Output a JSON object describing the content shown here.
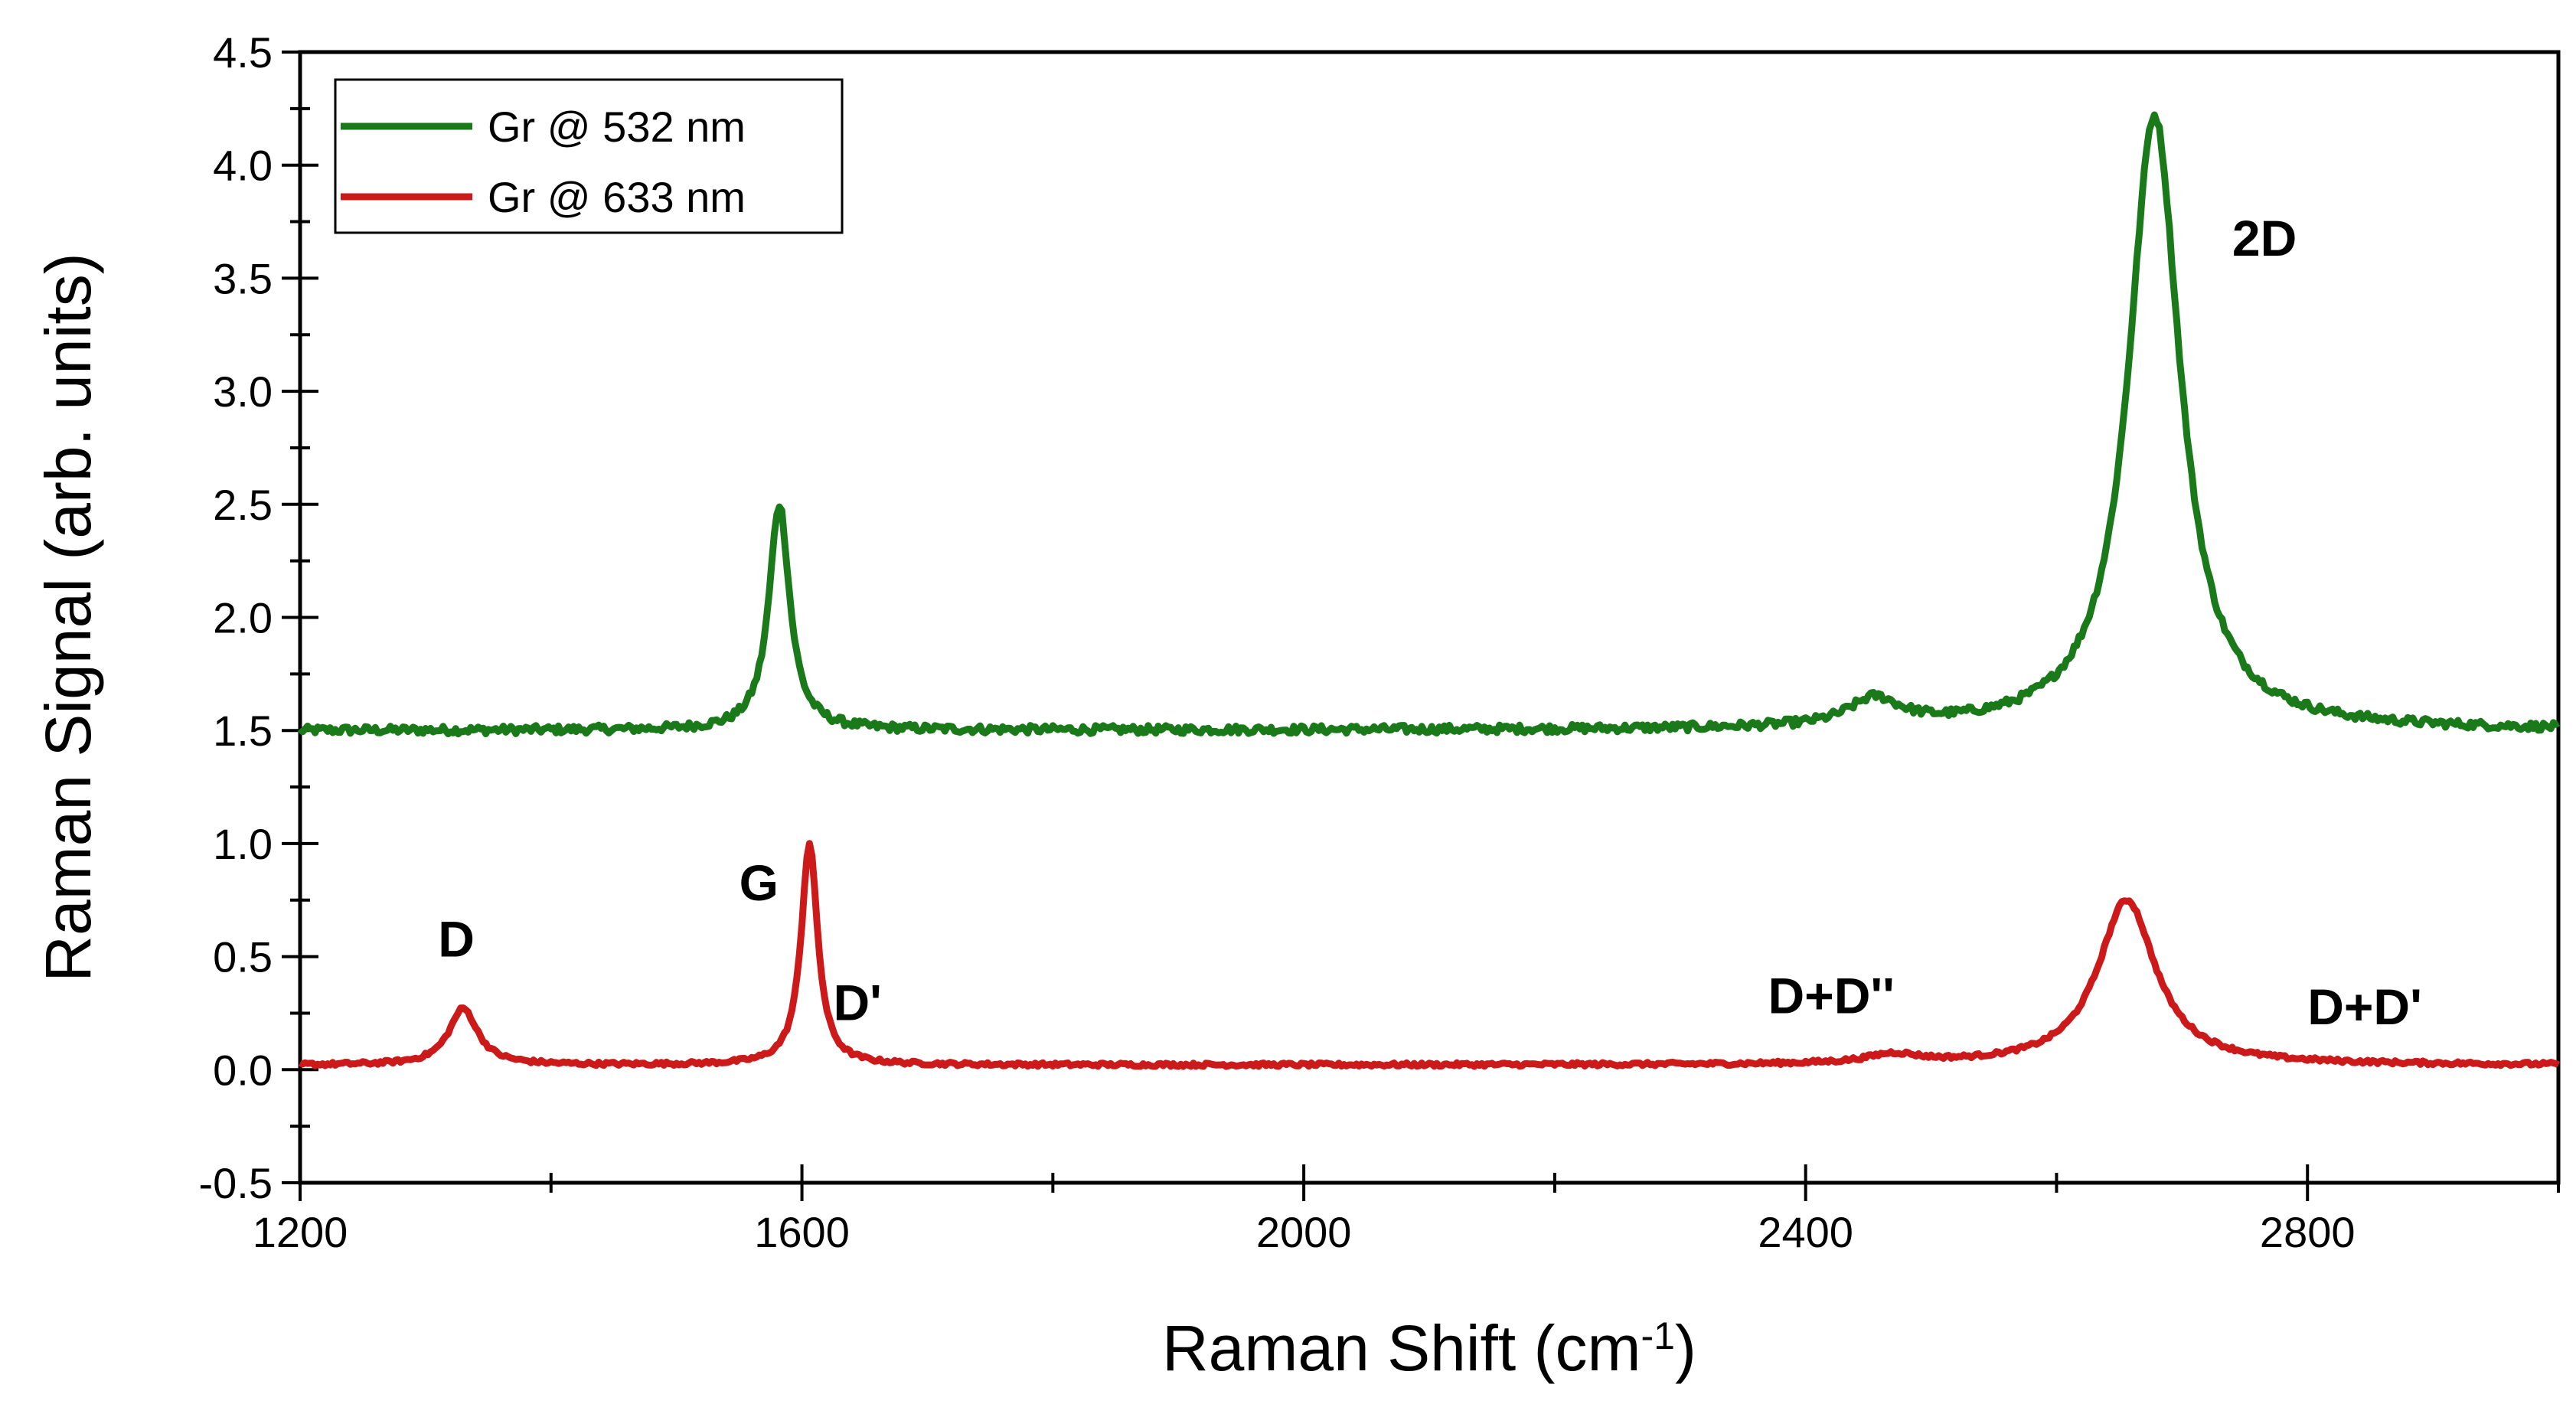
{
  "chart_data": {
    "type": "line",
    "xlabel": "Raman Shift (cm",
    "xlabel_sup": "-1",
    "xlabel_close": ")",
    "ylabel": "Raman Signal (arb. units)",
    "xlim": [
      1200,
      3000
    ],
    "ylim": [
      -0.5,
      4.5
    ],
    "xticks": [
      1200,
      1600,
      2000,
      2400,
      2800
    ],
    "xtick_labels": [
      "1200",
      "1600",
      "2000",
      "2400",
      "2800"
    ],
    "yticks": [
      -0.5,
      0.0,
      0.5,
      1.0,
      1.5,
      2.0,
      2.5,
      3.0,
      3.5,
      4.0,
      4.5
    ],
    "ytick_labels": [
      "-0.5",
      "0.0",
      "0.5",
      "1.0",
      "1.5",
      "2.0",
      "2.5",
      "3.0",
      "3.5",
      "4.0",
      "4.5"
    ],
    "legend_position": "top-left",
    "series": [
      {
        "name": "Gr @ 532 nm",
        "color": "#1a7a1a",
        "baseline": 1.5,
        "peaks": [
          {
            "label": "G",
            "center": 1582,
            "height": 1.0,
            "width": 10
          },
          {
            "label": "D+D''",
            "center": 2455,
            "height": 0.12,
            "width": 25
          },
          {
            "label": "2D",
            "center": 2678,
            "height": 2.72,
            "width": 25
          }
        ]
      },
      {
        "name": "Gr @ 633 nm",
        "color": "#cc1a1a",
        "baseline": 0.02,
        "peaks": [
          {
            "label": "D",
            "center": 1330,
            "height": 0.25,
            "width": 14
          },
          {
            "label": "G",
            "center": 1606,
            "height": 0.98,
            "width": 8
          },
          {
            "label": "D+D''",
            "center": 2470,
            "height": 0.04,
            "width": 25
          },
          {
            "label": "2D",
            "center": 2656,
            "height": 0.73,
            "width": 28
          }
        ]
      }
    ],
    "annotations": [
      {
        "text": "2D",
        "x": 2740,
        "y": 3.6
      },
      {
        "text": "G",
        "x": 1550,
        "y": 0.75
      },
      {
        "text": "D",
        "x": 1310,
        "y": 0.5
      },
      {
        "text": "D'",
        "x": 1625,
        "y": 0.22
      },
      {
        "text": "D+D''",
        "x": 2370,
        "y": 0.25
      },
      {
        "text": "D+D'",
        "x": 2800,
        "y": 0.2
      }
    ]
  }
}
